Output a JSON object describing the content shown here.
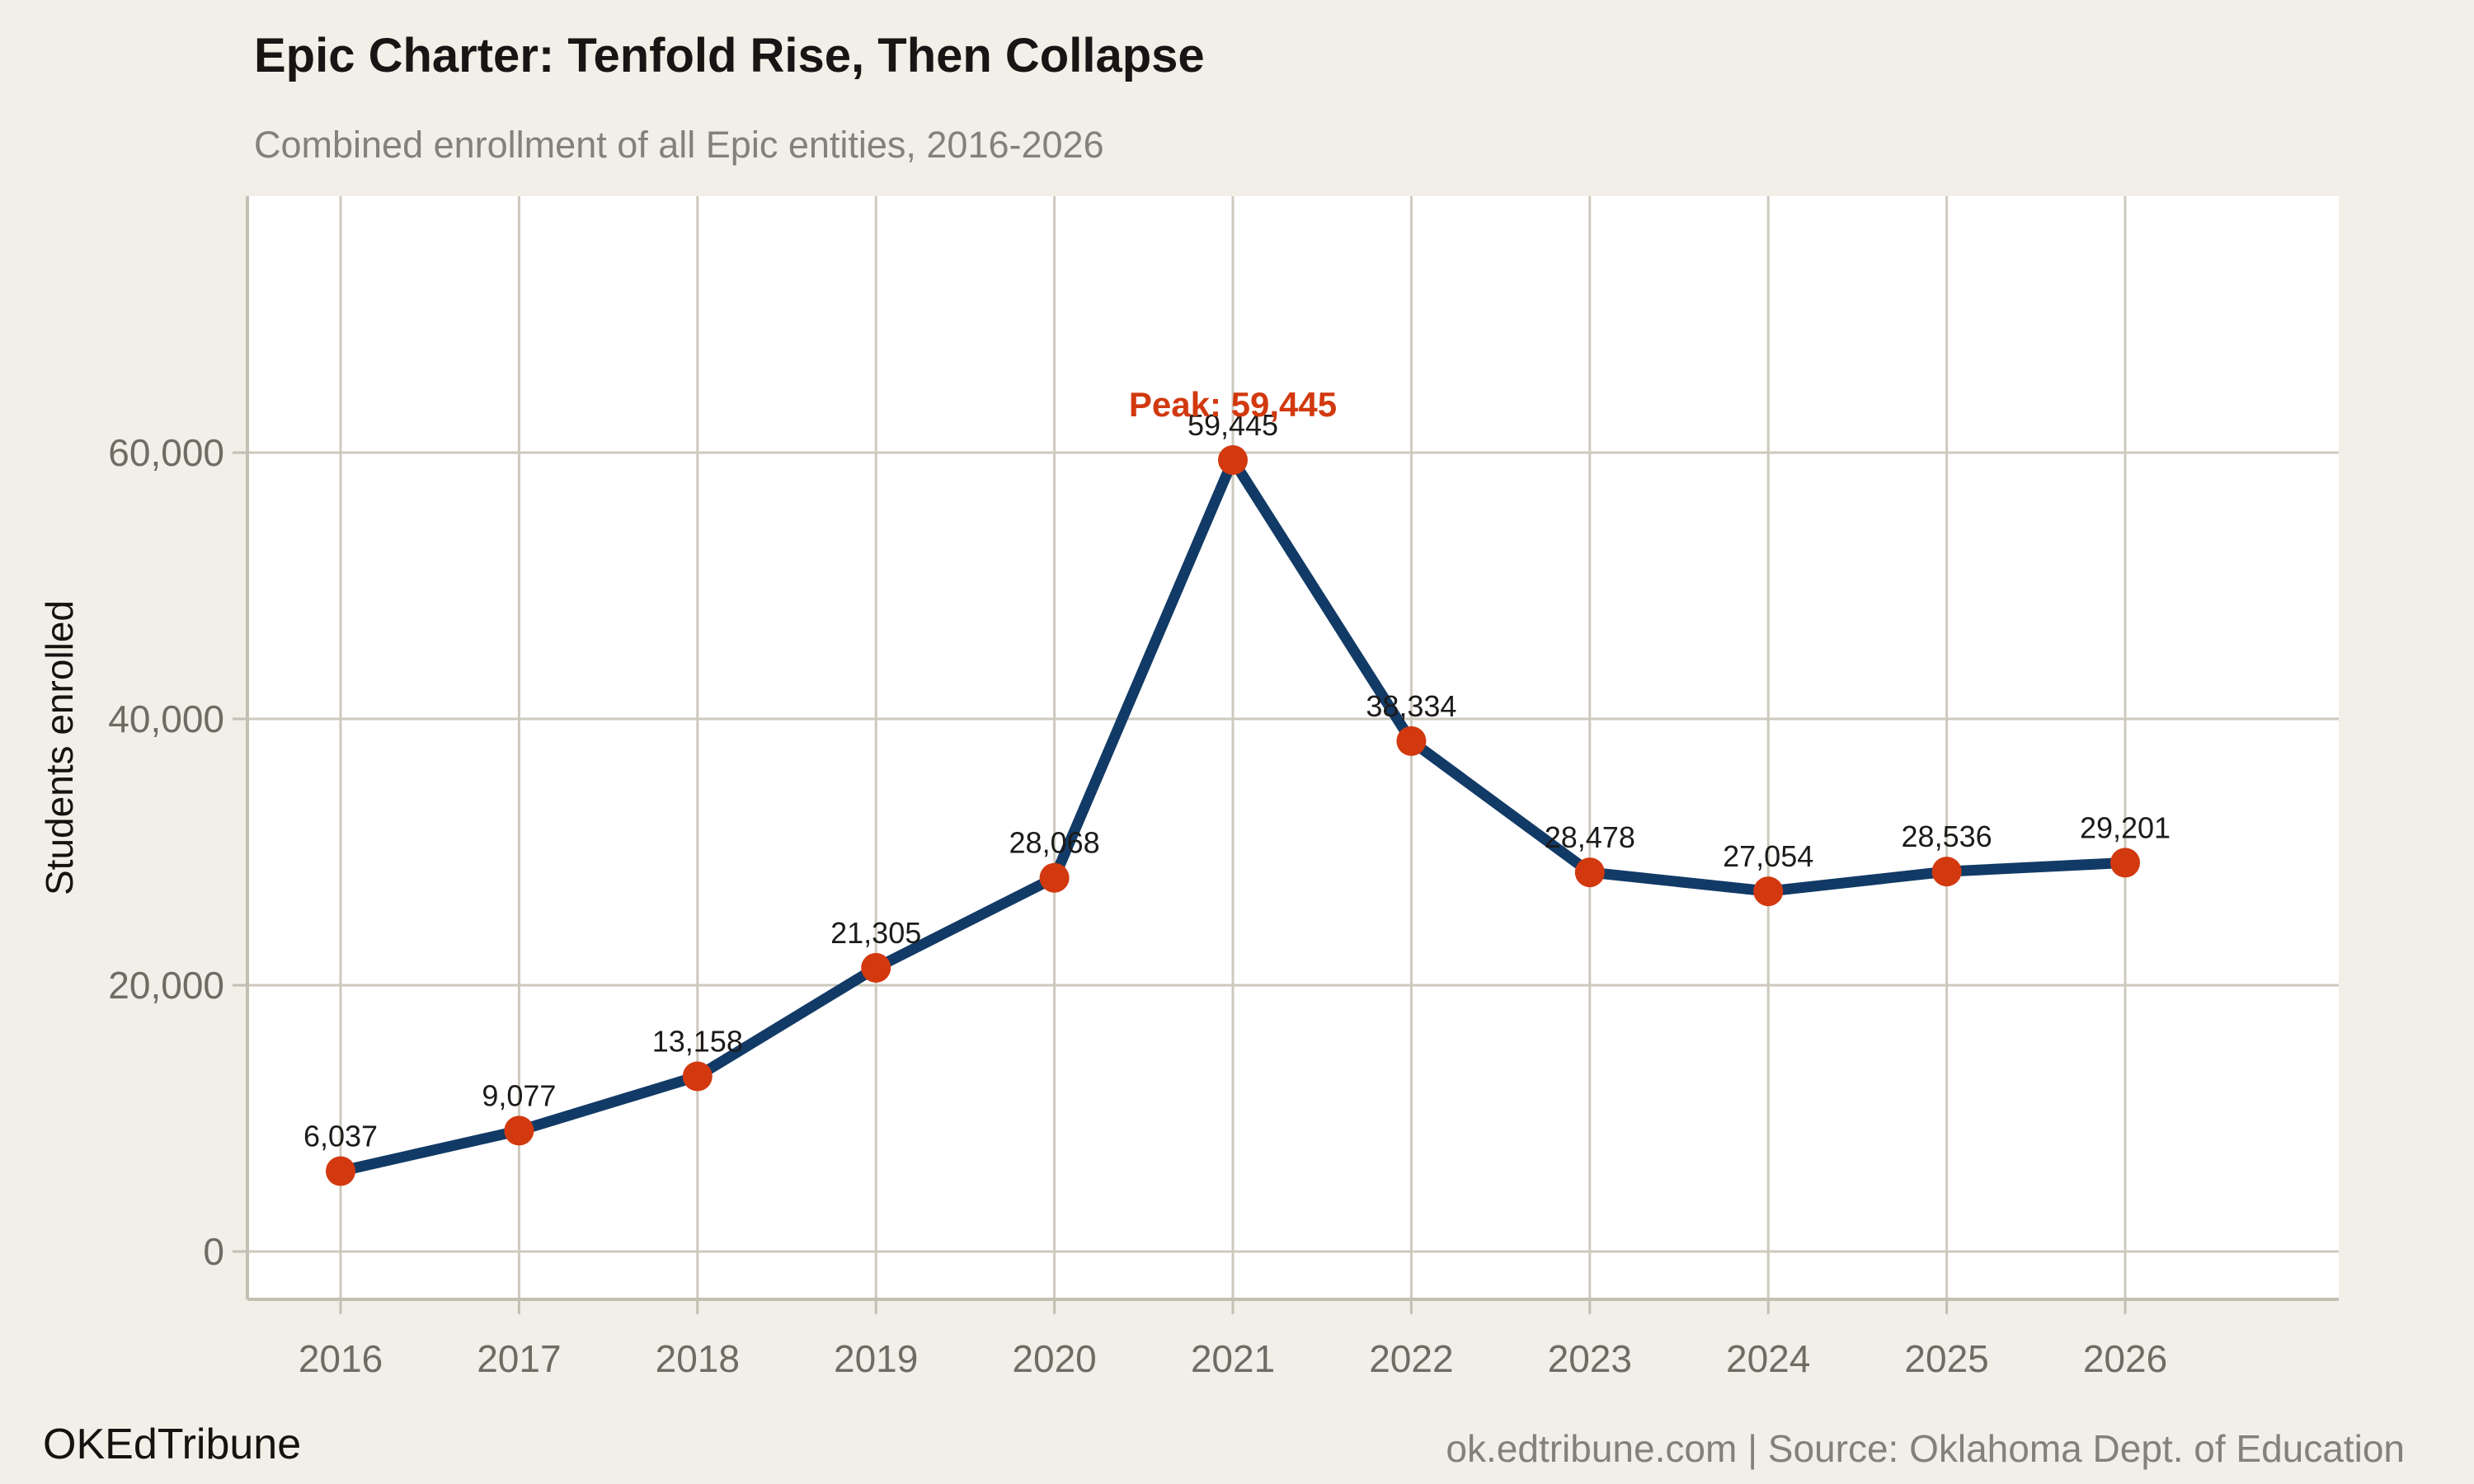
{
  "header": {
    "title": "Epic Charter: Tenfold Rise, Then Collapse",
    "subtitle": "Combined enrollment of all Epic entities, 2016-2026"
  },
  "footer": {
    "brand": "OKEdTribune",
    "source": "ok.edtribune.com | Source: Oklahoma Dept. of Education"
  },
  "chart_data": {
    "type": "line",
    "title": "Epic Charter: Tenfold Rise, Then Collapse",
    "subtitle": "Combined enrollment of all Epic entities, 2016-2026",
    "x": [
      2016,
      2017,
      2018,
      2019,
      2020,
      2021,
      2022,
      2023,
      2024,
      2025,
      2026
    ],
    "values": [
      6037,
      9077,
      13158,
      21305,
      28068,
      59445,
      38334,
      28478,
      27054,
      28536,
      29201
    ],
    "labels": [
      "6,037",
      "9,077",
      "13,158",
      "21,305",
      "28,068",
      "59,445",
      "38,334",
      "28,478",
      "27,054",
      "28,536",
      "29,201"
    ],
    "xlabel": "",
    "ylabel": "Students enrolled",
    "yticks": [
      0,
      20000,
      40000,
      60000
    ],
    "ytick_labels": [
      "0",
      "20,000",
      "40,000",
      "60,000"
    ],
    "xtick_labels": [
      "2016",
      "2017",
      "2018",
      "2019",
      "2020",
      "2021",
      "2022",
      "2023",
      "2024",
      "2025",
      "2026"
    ],
    "ylim": [
      -3600,
      79300
    ],
    "grid": true,
    "legend": "none",
    "annotation": {
      "text": "Peak: 59,445",
      "x": 2021,
      "y": 59445
    },
    "colors": {
      "background": "#f2efe8",
      "panel": "#ffffff",
      "grid": "#cdc9bd",
      "axis": "#c3bfb3",
      "line": "#123a66",
      "point": "#d2390f",
      "accent": "#d2390f",
      "tick_label": "#6f6c64",
      "data_label": "#1c1b19"
    }
  }
}
